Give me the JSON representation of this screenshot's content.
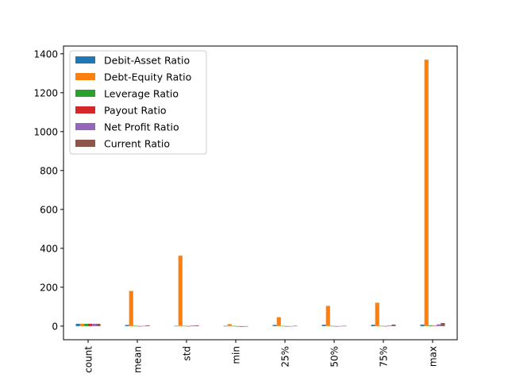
{
  "chart_data": {
    "type": "bar",
    "categories": [
      "count",
      "mean",
      "std",
      "min",
      "25%",
      "50%",
      "75%",
      "max"
    ],
    "series": [
      {
        "name": "Debit-Asset Ratio",
        "color": "#1f77b4",
        "values": [
          12,
          6,
          1,
          1,
          6,
          7,
          7,
          8
        ]
      },
      {
        "name": "Debt-Equity Ratio",
        "color": "#ff7f0e",
        "values": [
          12,
          181,
          362,
          10,
          46,
          104,
          120,
          1370
        ]
      },
      {
        "name": "Leverage Ratio",
        "color": "#2ca02c",
        "values": [
          12,
          2,
          1,
          1,
          1,
          1,
          1,
          4
        ]
      },
      {
        "name": "Payout Ratio",
        "color": "#d62728",
        "values": [
          12,
          0.5,
          0.5,
          -2,
          0,
          0,
          0.5,
          2
        ]
      },
      {
        "name": "Net Profit Ratio",
        "color": "#9467bd",
        "values": [
          12,
          1,
          3,
          -4,
          -0.5,
          0.5,
          3,
          9
        ]
      },
      {
        "name": "Current Ratio",
        "color": "#8c564b",
        "values": [
          12,
          4,
          4,
          -1,
          1.5,
          1.5,
          8,
          16
        ]
      }
    ],
    "yticks": [
      "0",
      "200",
      "400",
      "600",
      "800",
      "1000",
      "1200",
      "1400"
    ],
    "ylim": [
      -70,
      1440
    ],
    "xlabel": "",
    "ylabel": "",
    "title": "",
    "legend_position": "top-left",
    "grid": false
  }
}
